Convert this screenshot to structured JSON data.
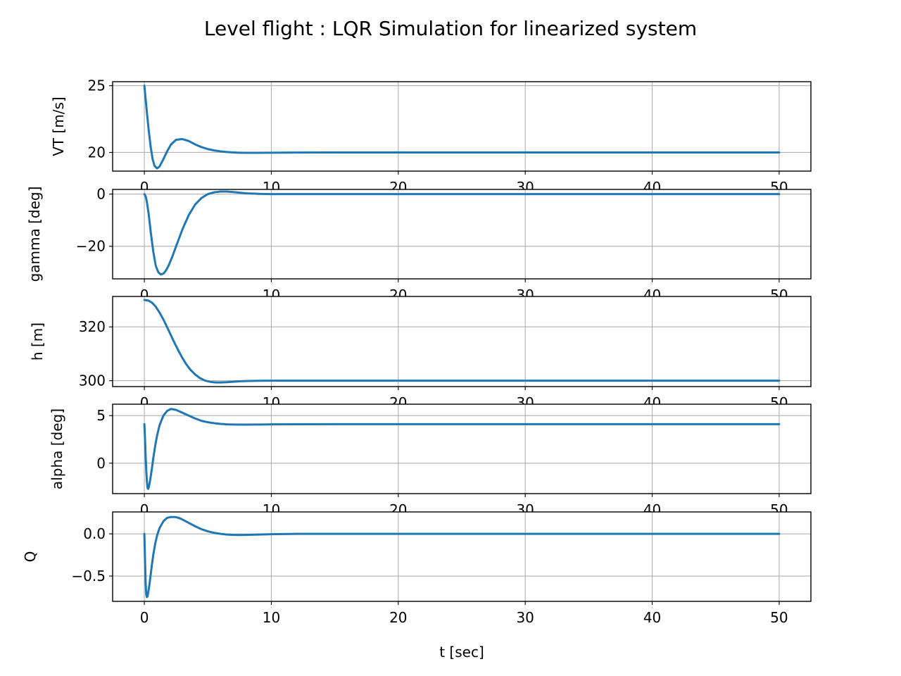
{
  "chart_data": {
    "suptitle": "Level flight : LQR Simulation for linearized system",
    "type": "line",
    "series_color": "#1f77b4",
    "grid": true,
    "xlim": [
      -2.5,
      52.5
    ],
    "xticks": [
      0,
      10,
      20,
      30,
      40,
      50
    ],
    "xlabel": "t [sec]",
    "subplots": [
      {
        "ylabel": "VT [m/s]",
        "ylim": [
          18.6,
          25.3
        ],
        "yticks": [
          20,
          25
        ],
        "ytick_labels": [
          "20",
          "25"
        ],
        "series": [
          {
            "x": [
              0,
              0.1,
              0.2,
              0.35,
              0.5,
              0.65,
              0.8,
              1.0,
              1.2,
              1.5,
              1.8,
              2.1,
              2.5,
              3.0,
              3.5,
              4.0,
              4.5,
              5.0,
              5.5,
              6.0,
              6.5,
              7.0,
              7.5,
              8.0,
              9.0,
              10.0,
              12.0,
              15.0,
              20.0,
              30.0,
              40.0,
              50.0
            ],
            "y": [
              25.0,
              24.0,
              23.0,
              21.6,
              20.4,
              19.5,
              19.0,
              18.8,
              18.95,
              19.5,
              20.1,
              20.6,
              20.95,
              21.0,
              20.85,
              20.6,
              20.4,
              20.25,
              20.15,
              20.08,
              20.03,
              20.0,
              19.98,
              19.97,
              19.97,
              19.98,
              19.99,
              20.0,
              20.0,
              20.0,
              20.0,
              20.0
            ]
          }
        ]
      },
      {
        "ylabel": "gamma [deg]",
        "ylim": [
          -32.5,
          1.8
        ],
        "yticks": [
          0,
          -20
        ],
        "ytick_labels": [
          "0",
          "−20"
        ],
        "series": [
          {
            "x": [
              0,
              0.1,
              0.2,
              0.35,
              0.5,
              0.7,
              0.9,
              1.1,
              1.3,
              1.5,
              1.7,
              1.9,
              2.2,
              2.5,
              3.0,
              3.5,
              4.0,
              4.5,
              5.0,
              5.5,
              6.0,
              6.5,
              7.0,
              7.5,
              8.0,
              9.0,
              10.0,
              12.0,
              15.0,
              20.0,
              30.0,
              40.0,
              50.0
            ],
            "y": [
              0,
              -0.8,
              -3.0,
              -8.0,
              -14.5,
              -22.0,
              -27.5,
              -30.0,
              -30.8,
              -30.5,
              -29.3,
              -27.5,
              -24.0,
              -20.0,
              -13.5,
              -8.0,
              -4.0,
              -1.5,
              0.0,
              0.7,
              1.0,
              1.0,
              0.8,
              0.55,
              0.3,
              0.1,
              0.0,
              0.0,
              0.0,
              0.0,
              0.0,
              0.0,
              0.0
            ]
          }
        ]
      },
      {
        "ylabel": "h [m]",
        "ylim": [
          297.8,
          331.3
        ],
        "yticks": [
          300,
          320
        ],
        "ytick_labels": [
          "300",
          "320"
        ],
        "series": [
          {
            "x": [
              0,
              0.3,
              0.6,
              0.9,
              1.2,
              1.5,
              1.8,
              2.1,
              2.4,
              2.7,
              3.0,
              3.3,
              3.6,
              4.0,
              4.4,
              4.8,
              5.2,
              5.6,
              6.0,
              6.5,
              7.0,
              7.5,
              8.0,
              9.0,
              10.0,
              12.0,
              15.0,
              20.0,
              30.0,
              40.0,
              50.0
            ],
            "y": [
              330.0,
              329.8,
              329.0,
              327.5,
              325.3,
              322.7,
              319.8,
              316.8,
              313.8,
              311.0,
              308.4,
              306.1,
              304.2,
              302.3,
              300.9,
              300.0,
              299.55,
              299.35,
              299.35,
              299.45,
              299.6,
              299.75,
              299.85,
              299.95,
              300.0,
              300.0,
              300.0,
              300.0,
              300.0,
              300.0,
              300.0
            ]
          }
        ]
      },
      {
        "ylabel": "alpha [deg]",
        "ylim": [
          -3.2,
          6.2
        ],
        "yticks": [
          0,
          5
        ],
        "ytick_labels": [
          "0",
          "5"
        ],
        "series": [
          {
            "x": [
              0,
              0.05,
              0.1,
              0.15,
              0.2,
              0.25,
              0.3,
              0.35,
              0.4,
              0.5,
              0.6,
              0.7,
              0.85,
              1.0,
              1.2,
              1.5,
              1.8,
              2.1,
              2.5,
              3.0,
              3.5,
              4.0,
              4.5,
              5.0,
              5.5,
              6.0,
              6.5,
              7.0,
              7.5,
              8.0,
              9.0,
              10.0,
              15.0,
              20.0,
              30.0,
              40.0,
              50.0
            ],
            "y": [
              4.1,
              2.6,
              0.8,
              -0.8,
              -1.9,
              -2.6,
              -2.7,
              -2.5,
              -2.2,
              -1.4,
              -0.5,
              0.5,
              1.8,
              2.9,
              4.0,
              5.0,
              5.5,
              5.7,
              5.6,
              5.3,
              5.0,
              4.7,
              4.45,
              4.3,
              4.2,
              4.13,
              4.08,
              4.06,
              4.05,
              4.05,
              4.06,
              4.08,
              4.1,
              4.1,
              4.1,
              4.1,
              4.1
            ]
          }
        ]
      },
      {
        "ylabel": "Q",
        "ylim": [
          -0.8,
          0.26
        ],
        "yticks": [
          0.0,
          -0.5
        ],
        "ytick_labels": [
          "0.0",
          "−0.5"
        ],
        "series": [
          {
            "x": [
              0,
              0.05,
              0.1,
              0.15,
              0.2,
              0.25,
              0.3,
              0.4,
              0.5,
              0.6,
              0.7,
              0.85,
              1.0,
              1.2,
              1.5,
              1.8,
              2.1,
              2.4,
              2.7,
              3.0,
              3.5,
              4.0,
              4.5,
              5.0,
              5.5,
              6.0,
              6.5,
              7.0,
              7.5,
              8.0,
              9.0,
              10.0,
              12.0,
              15.0,
              20.0,
              30.0,
              40.0,
              50.0
            ],
            "y": [
              0.0,
              -0.3,
              -0.58,
              -0.72,
              -0.75,
              -0.74,
              -0.7,
              -0.6,
              -0.48,
              -0.36,
              -0.25,
              -0.12,
              -0.02,
              0.07,
              0.15,
              0.19,
              0.2,
              0.2,
              0.19,
              0.17,
              0.13,
              0.09,
              0.055,
              0.03,
              0.012,
              0.0,
              -0.008,
              -0.012,
              -0.013,
              -0.012,
              -0.008,
              -0.004,
              0.0,
              0.0,
              0.0,
              0.0,
              0.0,
              0.0
            ]
          }
        ]
      }
    ]
  }
}
